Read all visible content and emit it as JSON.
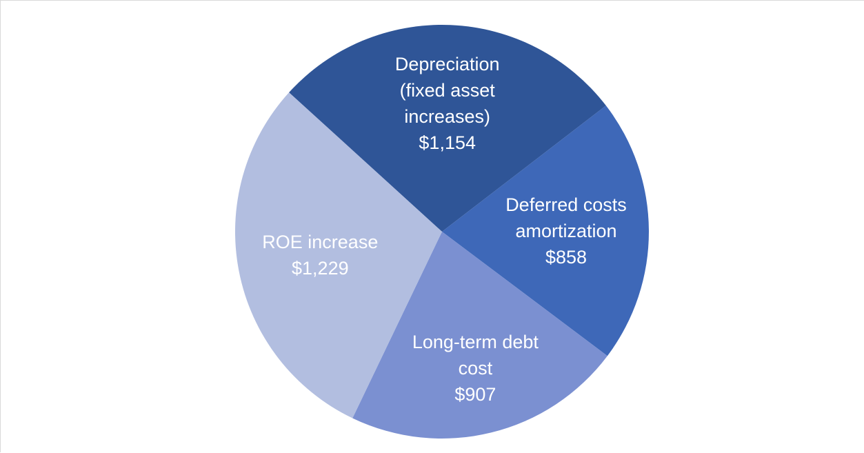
{
  "chart_data": {
    "type": "pie",
    "categories": [
      "Depreciation (fixed asset increases)",
      "Deferred costs amortization",
      "Long-term debt cost",
      "ROE increase"
    ],
    "values": [
      1154,
      858,
      907,
      1229
    ],
    "value_labels": [
      "$1,154",
      "$858",
      "$907",
      "$1,229"
    ],
    "colors": [
      "#2f5597",
      "#3e68b8",
      "#7b90d1",
      "#b2bee0"
    ]
  }
}
